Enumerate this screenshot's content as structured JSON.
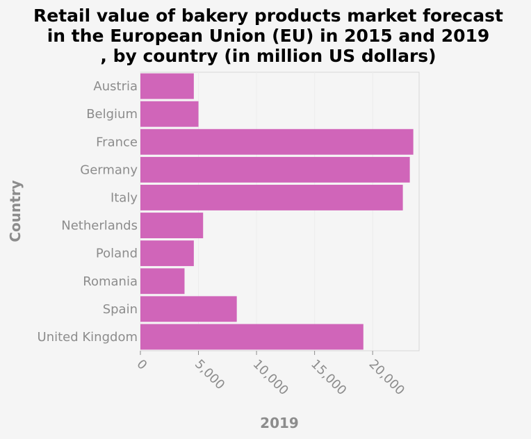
{
  "chart_data": {
    "type": "bar",
    "orientation": "horizontal",
    "title": "Retail value of bakery products market forecast in the European Union (EU) in 2015 and 2019 , by country (in million US dollars)",
    "title_lines": [
      "Retail value of bakery products market forecast",
      "in the European Union (EU) in 2015 and 2019",
      ", by country (in million US dollars)"
    ],
    "xlabel": "2019",
    "ylabel": "Country",
    "categories": [
      "Austria",
      "Belgium",
      "France",
      "Germany",
      "Italy",
      "Netherlands",
      "Poland",
      "Romania",
      "Spain",
      "United Kingdom"
    ],
    "values": [
      4600,
      5000,
      23500,
      23200,
      22600,
      5400,
      4600,
      3800,
      8300,
      19200
    ],
    "xlim": [
      0,
      24000
    ],
    "xticks": [
      0,
      5000,
      10000,
      15000,
      20000
    ],
    "xtick_labels": [
      "0",
      "5,000",
      "10,000",
      "15,000",
      "20,000"
    ],
    "bar_color": "#d065b9",
    "grid": true
  }
}
